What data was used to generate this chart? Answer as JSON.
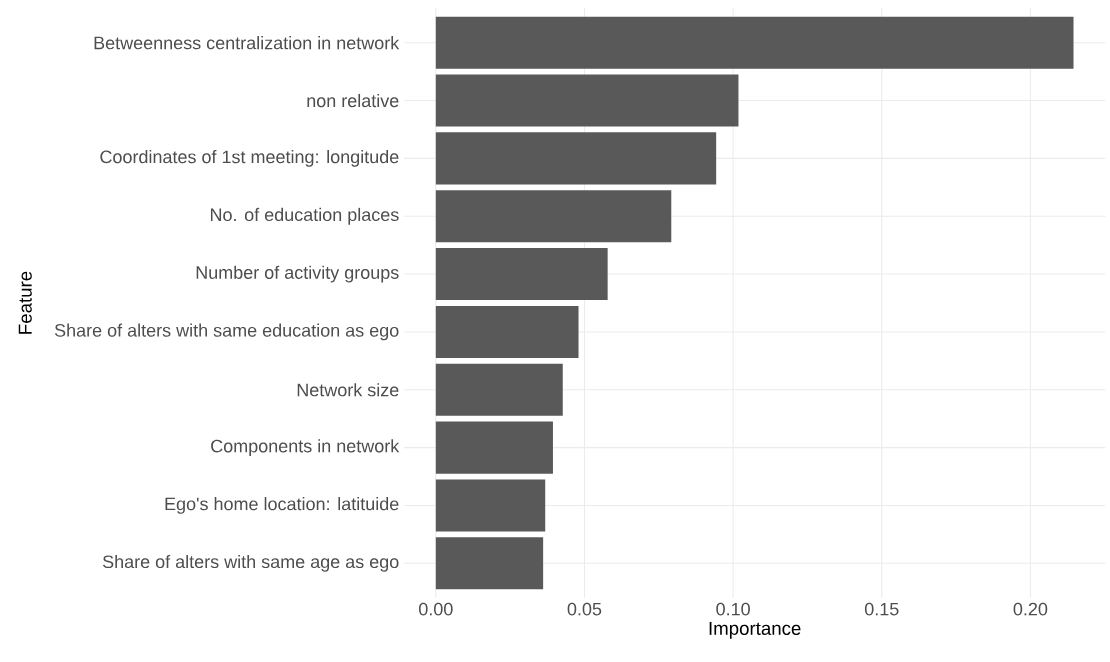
{
  "chart_data": {
    "type": "bar",
    "orientation": "horizontal",
    "xlabel": "Importance",
    "ylabel": "Feature",
    "categories": [
      "Betweenness centralization in network",
      "non relative",
      "Coordinates of 1st meeting: longitude",
      "No. of education places",
      "Number of activity groups",
      "Share of alters with same education as ego",
      "Network size",
      "Components in network",
      "Ego's home location: latituide",
      "Share of alters with same age as ego"
    ],
    "values": [
      0.2145,
      0.1018,
      0.0943,
      0.0792,
      0.0578,
      0.048,
      0.0427,
      0.0394,
      0.0368,
      0.0361
    ],
    "color": "#595959",
    "xlim": [
      -0.0107,
      0.2252
    ],
    "xticks": [
      {
        "value": 0,
        "label": "0.00"
      },
      {
        "value": 0.05,
        "label": "0.05"
      },
      {
        "value": 0.1,
        "label": "0.10"
      },
      {
        "value": 0.15,
        "label": "0.15"
      },
      {
        "value": 0.2,
        "label": "0.20"
      }
    ],
    "grid": true
  }
}
